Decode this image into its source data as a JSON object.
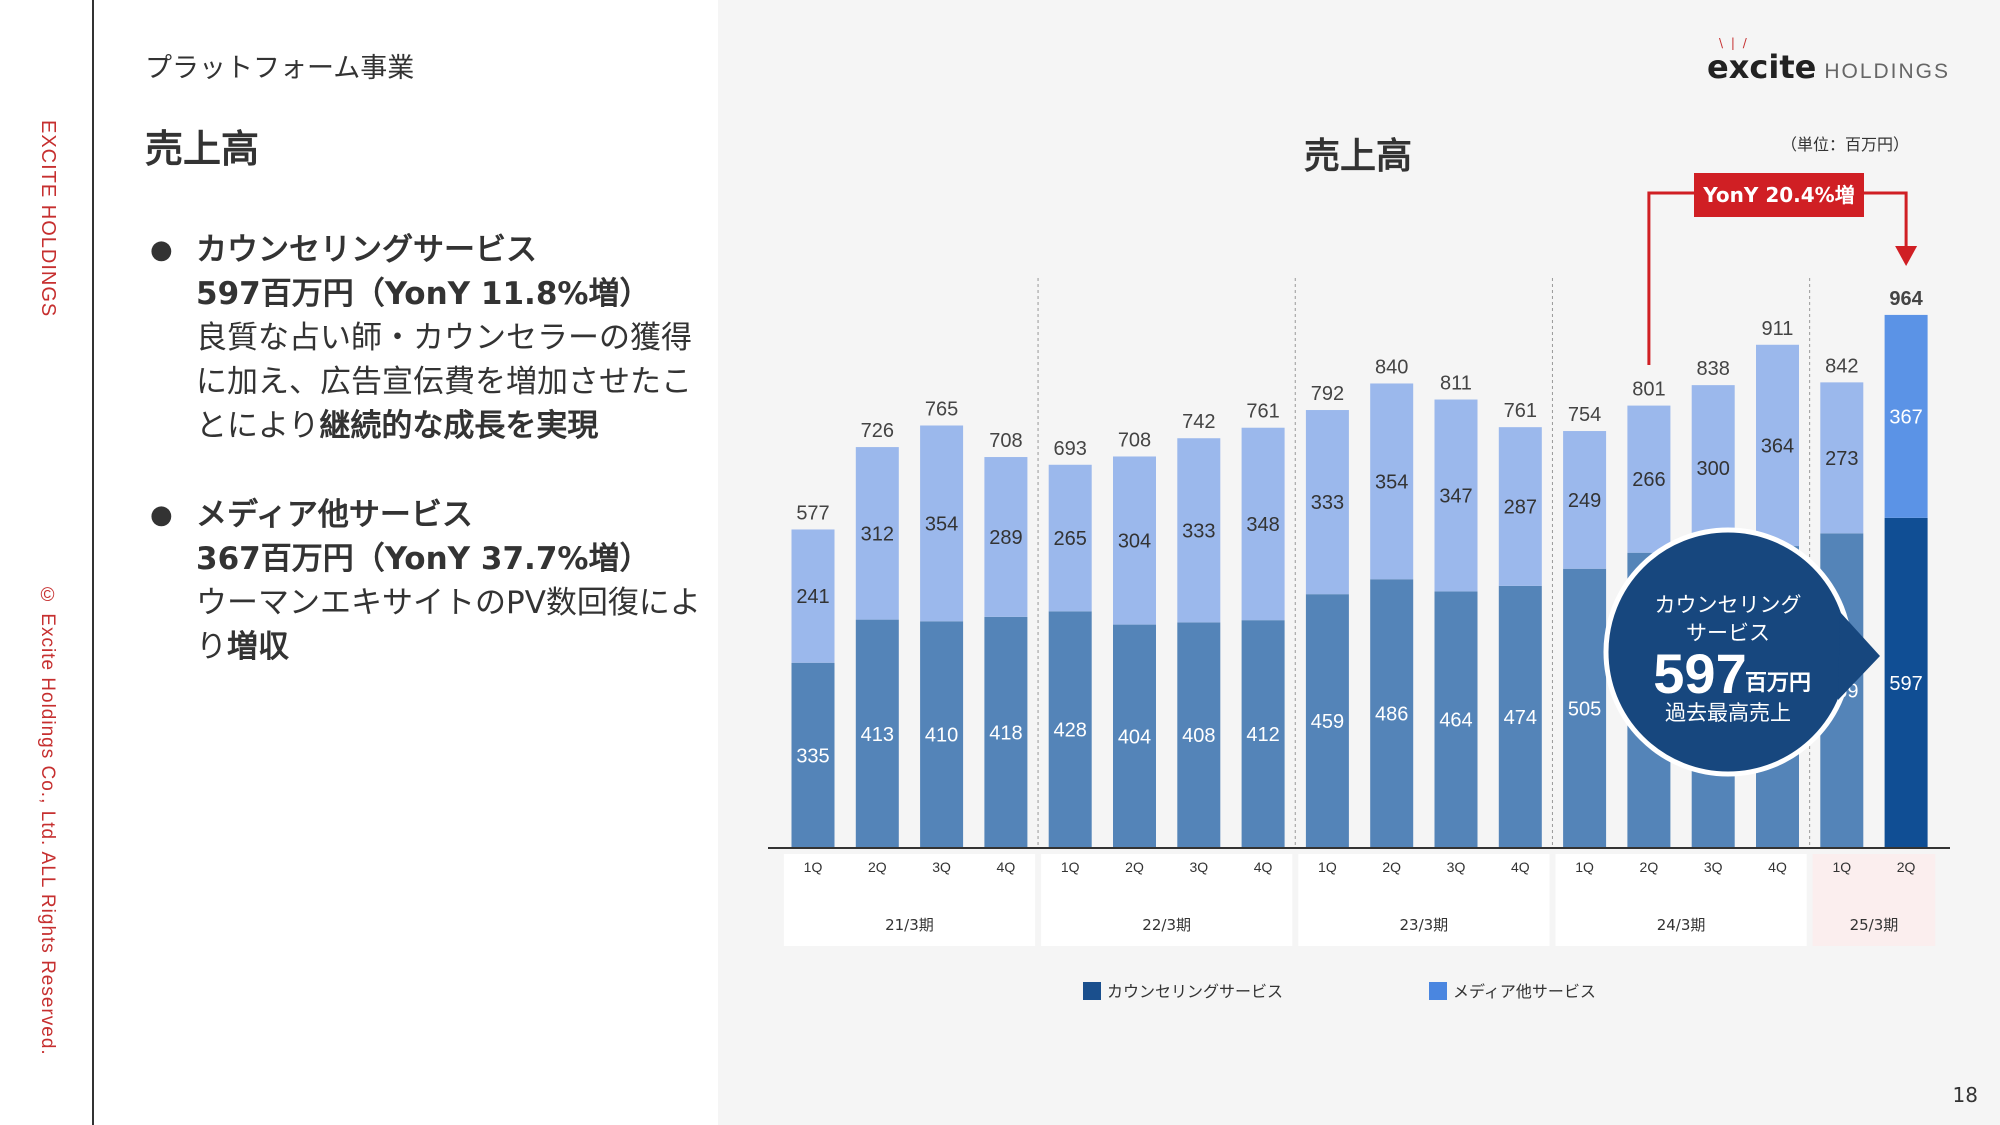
{
  "sidebar": {
    "brand": "EXCITE HOLDINGS",
    "copyright": "© Excite Holdings Co., Ltd. ALL Rights Reserved."
  },
  "header": {
    "section": "プラットフォーム事業",
    "heading": "売上高"
  },
  "bullets": [
    {
      "dot": "●",
      "title": "カウンセリングサービス",
      "figure": "597百万円（YonY 11.8%増）",
      "desc_plain": "良質な占い師・カウンセラーの獲得に加え、広告宣伝費を増加させたことにより",
      "desc_bold": "継続的な成長を実現"
    },
    {
      "dot": "●",
      "title": "メディア他サービス",
      "figure": "367百万円（YonY 37.7%増）",
      "desc_plain": "ウーマンエキサイトのPV数回復により",
      "desc_bold": "増収"
    }
  ],
  "logo": {
    "word": "excite",
    "suffix": "HOLDINGS"
  },
  "page_number": "18",
  "colors": {
    "counseling": "#5484b8",
    "media": "#9bb8ec",
    "counseling_latest": "#104e94",
    "media_latest": "#5b93e6",
    "accent_red": "#d01f24",
    "callout": "#17477e",
    "legend_counseling": "#1a4f8d",
    "legend_media": "#4a86e0"
  },
  "callout_bubble": {
    "line1": "カウンセリング",
    "line2": "サービス",
    "value": "597",
    "unit": "百万円",
    "note": "過去最高売上"
  },
  "chart_data": {
    "type": "bar",
    "stacked": true,
    "title": "売上高",
    "unit_note": "（単位：百万円）",
    "categories": [
      "1Q",
      "2Q",
      "3Q",
      "4Q",
      "1Q",
      "2Q",
      "3Q",
      "4Q",
      "1Q",
      "2Q",
      "3Q",
      "4Q",
      "1Q",
      "2Q",
      "3Q",
      "4Q",
      "1Q",
      "2Q"
    ],
    "periods": [
      "21/3期",
      "22/3期",
      "23/3期",
      "24/3期",
      "25/3期"
    ],
    "series": [
      {
        "name": "カウンセリングサービス",
        "values": [
          335,
          413,
          410,
          418,
          428,
          404,
          408,
          412,
          459,
          486,
          464,
          474,
          505,
          534,
          537,
          546,
          569,
          597
        ]
      },
      {
        "name": "メディア他サービス",
        "values": [
          241,
          312,
          354,
          289,
          265,
          304,
          333,
          348,
          333,
          354,
          347,
          287,
          249,
          266,
          300,
          364,
          273,
          367
        ]
      }
    ],
    "totals": [
      577,
      726,
      765,
      708,
      693,
      708,
      742,
      761,
      792,
      840,
      811,
      761,
      754,
      801,
      838,
      911,
      842,
      964
    ],
    "annotation": "YonY 20.4%増",
    "legend": "bottom"
  }
}
